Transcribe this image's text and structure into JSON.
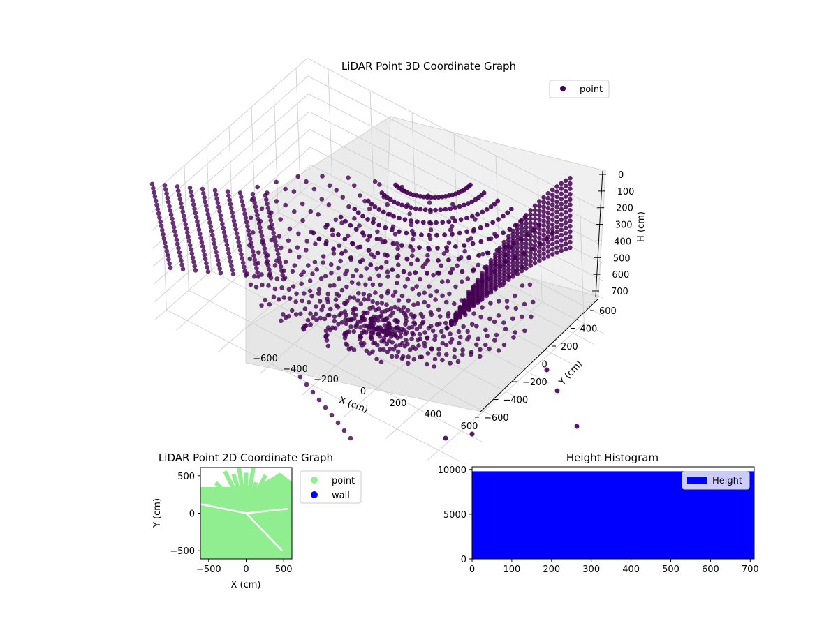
{
  "chart_data": [
    {
      "id": "lidar-3d",
      "type": "scatter",
      "title": "LiDAR Point 3D Coordinate Graph",
      "xlabel": "X (cm)",
      "ylabel": "Y (cm)",
      "zlabel": "H (cm)",
      "xlim": [
        -700,
        700
      ],
      "ylim": [
        -700,
        700
      ],
      "zlim": [
        700,
        0
      ],
      "xticks": [
        -600,
        -400,
        -200,
        0,
        200,
        400,
        600
      ],
      "xtick_labels": [
        "−600",
        "−400",
        "−200",
        "0",
        "200",
        "400",
        "600"
      ],
      "yticks": [
        -600,
        -400,
        -200,
        0,
        200,
        400,
        600
      ],
      "ytick_labels": [
        "−600",
        "−400",
        "−200",
        "0",
        "200",
        "400",
        "600"
      ],
      "zticks": [
        0,
        100,
        200,
        300,
        400,
        500,
        600,
        700
      ],
      "ztick_labels": [
        "0",
        "100",
        "200",
        "300",
        "400",
        "500",
        "600",
        "700"
      ],
      "grid": true,
      "legend": {
        "entries": [
          "point"
        ],
        "placement": "top-right"
      },
      "series": [
        {
          "name": "point",
          "color": "#440154",
          "description_values": {
            "ring_count": 18,
            "beam_count": 36
          }
        }
      ]
    },
    {
      "id": "lidar-2d",
      "type": "scatter",
      "title": "LiDAR Point 2D Coordinate Graph",
      "xlabel": "X (cm)",
      "ylabel": "Y (cm)",
      "xlim": [
        -610,
        610
      ],
      "ylim": [
        -610,
        610
      ],
      "xticks": [
        -500,
        0,
        500
      ],
      "xtick_labels": [
        "−500",
        "0",
        "500"
      ],
      "yticks": [
        -500,
        0,
        500
      ],
      "ytick_labels": [
        "−500",
        "0",
        "500"
      ],
      "legend": {
        "entries": [
          "point",
          "wall"
        ],
        "placement": "outside-right"
      },
      "series": [
        {
          "name": "point",
          "color": "#90ee90"
        },
        {
          "name": "wall",
          "color": "#0000ff"
        }
      ]
    },
    {
      "id": "height-hist",
      "type": "bar",
      "title": "Height Histogram",
      "xlim": [
        0,
        710
      ],
      "ylim": [
        0,
        10300
      ],
      "xticks": [
        0,
        100,
        200,
        300,
        400,
        500,
        600,
        700
      ],
      "xtick_labels": [
        "0",
        "100",
        "200",
        "300",
        "400",
        "500",
        "600",
        "700"
      ],
      "yticks": [
        0,
        5000,
        10000
      ],
      "ytick_labels": [
        "0",
        "5000",
        "10000"
      ],
      "bin_edges": [
        0,
        710
      ],
      "values": [
        9800
      ],
      "legend": {
        "entries": [
          "Height"
        ],
        "placement": "top-right"
      },
      "series": [
        {
          "name": "Height",
          "color": "#0000ff"
        }
      ]
    }
  ]
}
